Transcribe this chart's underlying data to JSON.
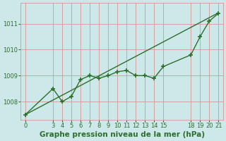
{
  "xlabel": "Graphe pression niveau de la mer (hPa)",
  "bg_color": "#cce8e8",
  "grid_color": "#d4a0a0",
  "line_color": "#2d6e2d",
  "ylim": [
    1007.3,
    1011.8
  ],
  "xlim": [
    -0.5,
    21.5
  ],
  "line1_x": [
    0,
    3,
    4,
    5,
    6,
    7,
    8,
    9,
    10,
    11,
    12,
    13,
    14,
    15,
    18,
    19,
    20,
    21
  ],
  "line1_y": [
    1007.5,
    1008.5,
    1008.0,
    1008.2,
    1008.85,
    1009.0,
    1008.9,
    1009.0,
    1009.15,
    1009.2,
    1009.0,
    1009.0,
    1008.9,
    1009.35,
    1009.8,
    1010.5,
    1011.1,
    1011.4
  ],
  "trend_x": [
    0,
    21
  ],
  "trend_y": [
    1007.5,
    1011.42
  ],
  "xticks": [
    0,
    3,
    4,
    5,
    6,
    7,
    8,
    9,
    10,
    11,
    12,
    13,
    14,
    15,
    18,
    19,
    20,
    21
  ],
  "yticks": [
    1008,
    1009,
    1010,
    1011
  ],
  "tick_fontsize": 6.0,
  "xlabel_fontsize": 7.5
}
